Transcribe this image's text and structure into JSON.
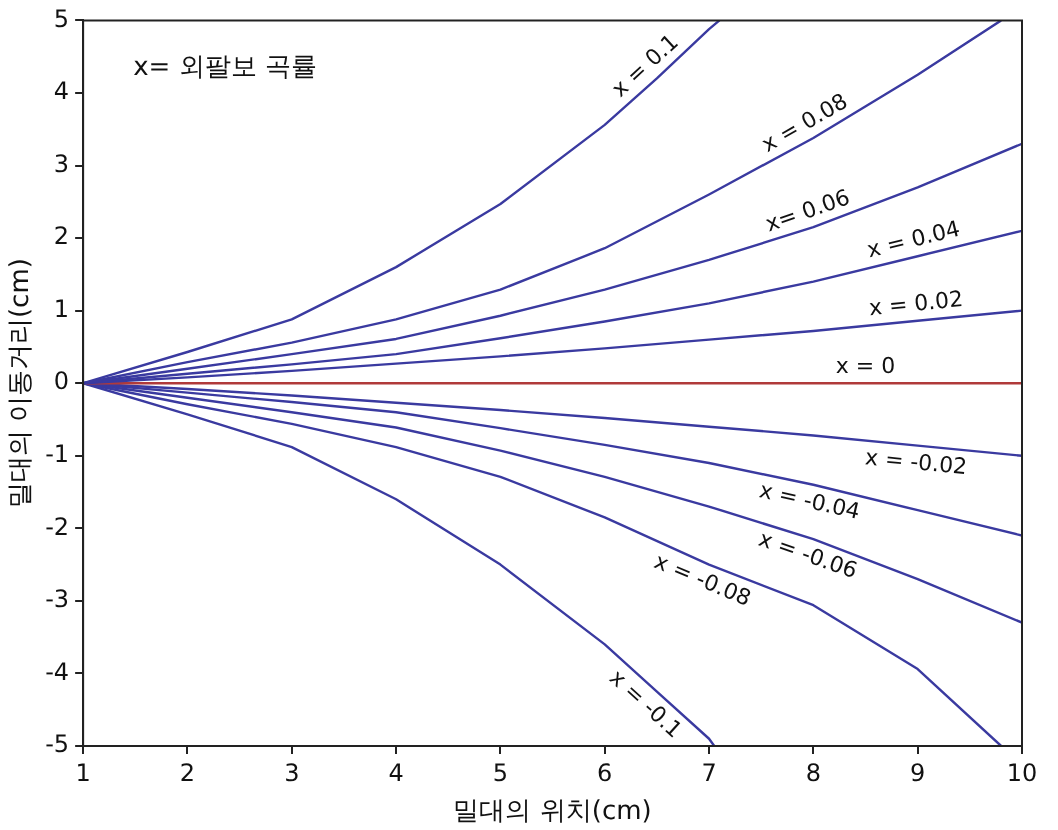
{
  "chart_data": {
    "type": "line",
    "xlabel": "밀대의 위치(cm)",
    "ylabel": "밀대의 이동거리(cm)",
    "xlim": [
      1,
      10
    ],
    "ylim": [
      -5,
      5
    ],
    "xticks": [
      1,
      2,
      3,
      4,
      5,
      6,
      7,
      8,
      9,
      10
    ],
    "yticks": [
      -5,
      -4,
      -3,
      -2,
      -1,
      0,
      1,
      2,
      3,
      4,
      5
    ],
    "grid": false,
    "legend": false,
    "marker": "none",
    "line_style": "solid",
    "series": [
      {
        "color": "#3a3aa0",
        "x": [
          1,
          2,
          3,
          4,
          5,
          6,
          6.5,
          7,
          7.1
        ],
        "values": [
          0,
          0.43,
          0.88,
          1.6,
          2.47,
          3.56,
          4.2,
          4.88,
          5
        ]
      },
      {
        "color": "#3a3aa0",
        "x": [
          1,
          2,
          3,
          4,
          5,
          6,
          7,
          8,
          9,
          9.8
        ],
        "values": [
          0,
          0.29,
          0.56,
          0.88,
          1.29,
          1.86,
          2.6,
          3.38,
          4.25,
          5
        ]
      },
      {
        "color": "#3a3aa0",
        "x": [
          1,
          2,
          3,
          4,
          5,
          6,
          7,
          8,
          9,
          10
        ],
        "values": [
          0,
          0.2,
          0.4,
          0.61,
          0.93,
          1.29,
          1.7,
          2.15,
          2.7,
          3.3
        ]
      },
      {
        "color": "#3a3aa0",
        "x": [
          1,
          2,
          3,
          4,
          5,
          6,
          7,
          8,
          9,
          10
        ],
        "values": [
          0,
          0.13,
          0.26,
          0.4,
          0.62,
          0.85,
          1.1,
          1.4,
          1.75,
          2.1
        ]
      },
      {
        "color": "#3a3aa0",
        "x": [
          1,
          2,
          3,
          4,
          5,
          6,
          7,
          8,
          9,
          10
        ],
        "values": [
          0,
          0.08,
          0.17,
          0.27,
          0.37,
          0.48,
          0.6,
          0.72,
          0.86,
          1
        ]
      },
      {
        "color": "#b03a3a",
        "x": [
          1,
          8.5,
          10
        ],
        "values": [
          0,
          0,
          0
        ]
      },
      {
        "color": "#3a3aa0",
        "x": [
          1,
          2,
          3,
          4,
          5,
          6,
          7,
          8,
          9,
          10
        ],
        "values": [
          0,
          -0.08,
          -0.17,
          -0.27,
          -0.37,
          -0.48,
          -0.6,
          -0.72,
          -0.86,
          -1
        ]
      },
      {
        "color": "#3a3aa0",
        "x": [
          1,
          2,
          3,
          4,
          5,
          6,
          7,
          8,
          9,
          10
        ],
        "values": [
          0,
          -0.13,
          -0.26,
          -0.4,
          -0.62,
          -0.85,
          -1.1,
          -1.4,
          -1.75,
          -2.1
        ]
      },
      {
        "color": "#3a3aa0",
        "x": [
          1,
          2,
          3,
          4,
          5,
          6,
          7,
          8,
          9,
          10
        ],
        "values": [
          0,
          -0.2,
          -0.4,
          -0.61,
          -0.93,
          -1.29,
          -1.7,
          -2.15,
          -2.7,
          -3.3
        ]
      },
      {
        "color": "#3a3aa0",
        "x": [
          1,
          2,
          3,
          4,
          5,
          6,
          7,
          8,
          9,
          9.8
        ],
        "values": [
          0,
          -0.29,
          -0.56,
          -0.88,
          -1.29,
          -1.85,
          -2.5,
          -3.06,
          -3.94,
          -5
        ]
      },
      {
        "color": "#3a3aa0",
        "x": [
          1,
          2,
          3,
          4,
          5,
          6,
          6.5,
          7,
          7.05
        ],
        "values": [
          0,
          -0.43,
          -0.88,
          -1.6,
          -2.5,
          -3.6,
          -4.25,
          -4.9,
          -5
        ]
      }
    ],
    "annotations": [
      "x= 외팔보 곡률",
      {
        "text": "x = 0.1",
        "x": 6.5,
        "y": 4.2
      },
      {
        "text": "x = 0.08",
        "x": 8,
        "y": 3.38
      },
      {
        "text": "x= 0.06",
        "x": 8,
        "y": 2.15
      },
      {
        "text": "x = 0.04",
        "x": 9,
        "y": 1.75
      },
      {
        "text": "x = 0.02",
        "x": 9,
        "y": 0.86
      },
      {
        "text": "x = 0",
        "x": 8.5,
        "y": 0
      },
      {
        "text": "x = -0.02",
        "x": 9,
        "y": -0.86
      },
      {
        "text": "x = -0.04",
        "x": 8,
        "y": -1.4
      },
      {
        "text": "x = -0.06",
        "x": 8,
        "y": -2.15
      },
      {
        "text": "x = -0.08",
        "x": 7,
        "y": -2.5
      },
      {
        "text": "x = -0.1",
        "x": 6.5,
        "y": -4.25
      }
    ]
  }
}
